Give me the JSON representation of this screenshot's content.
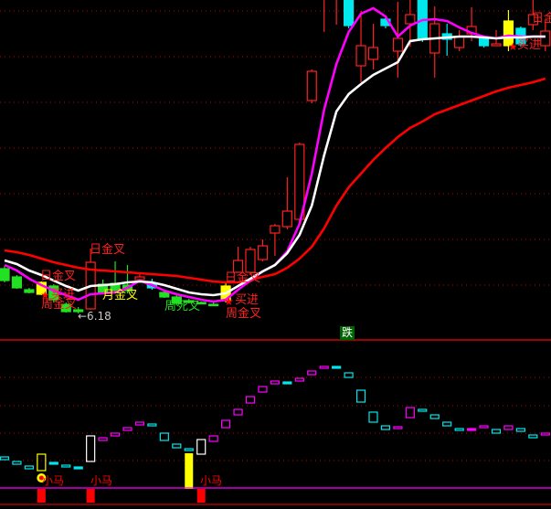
{
  "chart_data": [
    {
      "type": "candlestick",
      "ylim": [
        6.0,
        9.61
      ],
      "grid": true,
      "candles": [
        {
          "o": 6.67,
          "c": 6.54,
          "h": 6.7,
          "l": 6.52,
          "k": "down"
        },
        {
          "o": 6.58,
          "c": 6.46,
          "h": 6.6,
          "l": 6.45,
          "k": "down"
        },
        {
          "o": 6.44,
          "c": 6.41,
          "h": 6.46,
          "l": 6.4,
          "k": "down"
        },
        {
          "o": 6.39,
          "c": 6.52,
          "h": 6.53,
          "l": 6.38,
          "k": "yellow"
        },
        {
          "o": 6.48,
          "c": 6.33,
          "h": 6.5,
          "l": 6.3,
          "k": "down"
        },
        {
          "o": 6.28,
          "c": 6.2,
          "h": 6.3,
          "l": 6.19,
          "k": "down"
        },
        {
          "o": 6.22,
          "c": 6.2,
          "h": 6.25,
          "l": 6.18,
          "k": "down"
        },
        {
          "o": 6.23,
          "c": 6.74,
          "h": 6.89,
          "l": 6.22,
          "k": "up"
        },
        {
          "o": 6.5,
          "c": 6.41,
          "h": 6.55,
          "l": 6.4,
          "k": "down"
        },
        {
          "o": 6.51,
          "c": 6.43,
          "h": 6.75,
          "l": 6.4,
          "k": "down"
        },
        {
          "o": 6.49,
          "c": 6.43,
          "h": 6.71,
          "l": 6.4,
          "k": "down"
        },
        {
          "o": 6.55,
          "c": 6.58,
          "h": 6.63,
          "l": 6.52,
          "k": "up"
        },
        {
          "o": 6.51,
          "c": 6.46,
          "h": 6.56,
          "l": 6.44,
          "k": "cyan"
        },
        {
          "o": 6.41,
          "c": 6.36,
          "h": 6.43,
          "l": 6.35,
          "k": "down"
        },
        {
          "o": 6.36,
          "c": 6.29,
          "h": 6.38,
          "l": 6.27,
          "k": "down"
        },
        {
          "o": 6.32,
          "c": 6.3,
          "h": 6.34,
          "l": 6.29,
          "k": "down"
        },
        {
          "o": 6.3,
          "c": 6.29,
          "h": 6.31,
          "l": 6.28,
          "k": "down"
        },
        {
          "o": 6.28,
          "c": 6.28,
          "h": 6.3,
          "l": 6.26,
          "k": "down"
        },
        {
          "o": 6.32,
          "c": 6.48,
          "h": 6.52,
          "l": 6.3,
          "k": "yellow"
        },
        {
          "o": 6.63,
          "c": 6.76,
          "h": 6.91,
          "l": 6.63,
          "k": "up"
        },
        {
          "o": 6.63,
          "c": 6.88,
          "h": 6.91,
          "l": 6.6,
          "k": "up"
        },
        {
          "o": 6.77,
          "c": 6.92,
          "h": 6.99,
          "l": 6.75,
          "k": "up"
        },
        {
          "o": 7.06,
          "c": 7.14,
          "h": 7.16,
          "l": 6.81,
          "k": "up"
        },
        {
          "o": 7.13,
          "c": 7.3,
          "h": 7.67,
          "l": 7.1,
          "k": "up"
        },
        {
          "o": 7.21,
          "c": 8.03,
          "h": 8.05,
          "l": 7.18,
          "k": "up"
        },
        {
          "o": 8.51,
          "c": 8.83,
          "h": 8.85,
          "l": 8.48,
          "k": "up"
        },
        {
          "o": 9.7,
          "c": 10.0,
          "h": 10.2,
          "l": 9.26,
          "k": "up"
        },
        {
          "o": 9.75,
          "c": 9.95,
          "h": 10.1,
          "l": 9.34,
          "k": "up"
        },
        {
          "o": 9.9,
          "c": 9.33,
          "h": 9.95,
          "l": 9.3,
          "k": "cyan"
        },
        {
          "o": 8.89,
          "c": 9.11,
          "h": 9.49,
          "l": 8.71,
          "k": "up"
        },
        {
          "o": 8.96,
          "c": 9.09,
          "h": 9.35,
          "l": 8.85,
          "k": "up"
        },
        {
          "o": 9.4,
          "c": 9.33,
          "h": 9.42,
          "l": 9.3,
          "k": "cyan"
        },
        {
          "o": 9.05,
          "c": 9.19,
          "h": 9.59,
          "l": 8.76,
          "k": "up"
        },
        {
          "o": 9.35,
          "c": 9.45,
          "h": 9.62,
          "l": 9.1,
          "k": "up"
        },
        {
          "o": 9.7,
          "c": 9.19,
          "h": 9.7,
          "l": 9.15,
          "k": "cyan"
        },
        {
          "o": 9.03,
          "c": 9.35,
          "h": 9.54,
          "l": 8.76,
          "k": "up"
        },
        {
          "o": 9.24,
          "c": 9.18,
          "h": 9.35,
          "l": 9.0,
          "k": "cyan"
        },
        {
          "o": 9.09,
          "c": 9.21,
          "h": 9.28,
          "l": 9.05,
          "k": "up"
        },
        {
          "o": 9.24,
          "c": 9.32,
          "h": 9.53,
          "l": 9.16,
          "k": "up"
        },
        {
          "o": 9.19,
          "c": 9.11,
          "h": 9.2,
          "l": 9.09,
          "k": "cyan"
        },
        {
          "o": 9.11,
          "c": 9.13,
          "h": 9.28,
          "l": 9.11,
          "k": "up"
        },
        {
          "o": 9.11,
          "c": 9.38,
          "h": 9.5,
          "l": 9.05,
          "k": "yellow"
        },
        {
          "o": 9.3,
          "c": 9.13,
          "h": 9.32,
          "l": 9.1,
          "k": "cyan"
        },
        {
          "o": 9.34,
          "c": 9.45,
          "h": 9.61,
          "l": 9.28,
          "k": "up"
        },
        {
          "o": 9.11,
          "c": 9.27,
          "h": 9.4,
          "l": 9.05,
          "k": "up"
        }
      ],
      "lines": [
        {
          "color": "#ffffff",
          "values": [
            6.76,
            6.72,
            6.65,
            6.6,
            6.54,
            6.48,
            6.43,
            6.48,
            6.49,
            6.5,
            6.52,
            6.53,
            6.52,
            6.49,
            6.45,
            6.41,
            6.39,
            6.38,
            6.4,
            6.48,
            6.56,
            6.64,
            6.71,
            6.84,
            7.04,
            7.36,
            7.91,
            8.39,
            8.58,
            8.69,
            8.79,
            8.86,
            8.93,
            9.16,
            9.18,
            9.19,
            9.2,
            9.21,
            9.21,
            9.2,
            9.19,
            9.2,
            9.2,
            9.21,
            9.21
          ]
        },
        {
          "color": "#ff00ff",
          "values": [
            6.71,
            6.65,
            6.56,
            6.49,
            6.43,
            6.38,
            6.33,
            6.39,
            6.4,
            6.41,
            6.46,
            6.54,
            6.49,
            6.43,
            6.39,
            6.36,
            6.33,
            6.31,
            6.33,
            6.44,
            6.54,
            6.64,
            6.71,
            6.86,
            7.16,
            7.71,
            8.41,
            8.91,
            9.26,
            9.46,
            9.52,
            9.43,
            9.21,
            9.33,
            9.39,
            9.4,
            9.38,
            9.31,
            9.25,
            9.21,
            9.19,
            9.22,
            9.21,
            9.21,
            9.21
          ]
        },
        {
          "color": "#ff0000",
          "values": [
            6.87,
            6.85,
            6.82,
            6.78,
            6.74,
            6.71,
            6.68,
            6.66,
            6.65,
            6.64,
            6.63,
            6.62,
            6.61,
            6.6,
            6.59,
            6.57,
            6.55,
            6.53,
            6.52,
            6.52,
            6.55,
            6.58,
            6.61,
            6.68,
            6.78,
            6.91,
            7.11,
            7.36,
            7.56,
            7.71,
            7.86,
            7.99,
            8.11,
            8.21,
            8.28,
            8.36,
            8.41,
            8.46,
            8.51,
            8.56,
            8.61,
            8.65,
            8.68,
            8.71,
            8.75
          ]
        }
      ],
      "annotations": {
        "day_cross_1": "日金叉",
        "day_cross_2": "日金叉",
        "buy_1": "买进",
        "week_cross_1": "周金叉",
        "month_cross": "月金叉",
        "low_marker": "←6.18",
        "week_dead_cross": "周死叉",
        "day_cross_3": "日金叉",
        "buy_2": "买进",
        "week_cross_2": "周金叉",
        "day_cross_4": "日金",
        "buy_3": "买进",
        "fall_badge": "跌"
      }
    },
    {
      "type": "indicator-boxes",
      "boxes": [
        {
          "t": 3.4,
          "b": 3.1,
          "c": "cyan",
          "f": false
        },
        {
          "t": 2.9,
          "b": 2.6,
          "c": "cyan",
          "f": false
        },
        {
          "t": 2.4,
          "b": 2.1,
          "c": "cyan",
          "f": false
        },
        {
          "t": 3.7,
          "b": 1.9,
          "c": "yellow",
          "f": false
        },
        {
          "t": 2.8,
          "b": 2.6,
          "c": "cyan",
          "f": true
        },
        {
          "t": 2.5,
          "b": 2.3,
          "c": "cyan",
          "f": false
        },
        {
          "t": 2.3,
          "b": 2.1,
          "c": "cyan",
          "f": true
        },
        {
          "t": 5.7,
          "b": 2.9,
          "c": "white",
          "f": false
        },
        {
          "t": 5.5,
          "b": 5.2,
          "c": "magenta",
          "f": false
        },
        {
          "t": 6.0,
          "b": 5.7,
          "c": "magenta",
          "f": false
        },
        {
          "t": 6.6,
          "b": 6.3,
          "c": "magenta",
          "f": false
        },
        {
          "t": 7.2,
          "b": 6.9,
          "c": "magenta",
          "f": false
        },
        {
          "t": 7.0,
          "b": 6.8,
          "c": "cyan",
          "f": false
        },
        {
          "t": 6.0,
          "b": 5.2,
          "c": "cyan",
          "f": false
        },
        {
          "t": 4.8,
          "b": 4.4,
          "c": "cyan",
          "f": false
        },
        {
          "t": 4.3,
          "b": 4.1,
          "c": "cyan",
          "f": false
        },
        {
          "t": 5.3,
          "b": 3.7,
          "c": "white",
          "f": false
        },
        {
          "t": 5.7,
          "b": 5.1,
          "c": "magenta",
          "f": false
        },
        {
          "t": 7.4,
          "b": 6.6,
          "c": "magenta",
          "f": false
        },
        {
          "t": 8.6,
          "b": 8.0,
          "c": "magenta",
          "f": false
        },
        {
          "t": 10.0,
          "b": 9.3,
          "c": "magenta",
          "f": false
        },
        {
          "t": 11.1,
          "b": 10.5,
          "c": "magenta",
          "f": false
        },
        {
          "t": 11.7,
          "b": 11.4,
          "c": "magenta",
          "f": false
        },
        {
          "t": 11.6,
          "b": 11.4,
          "c": "cyan",
          "f": true
        },
        {
          "t": 12.0,
          "b": 11.7,
          "c": "magenta",
          "f": false
        },
        {
          "t": 12.8,
          "b": 12.4,
          "c": "magenta",
          "f": false
        },
        {
          "t": 13.3,
          "b": 13.1,
          "c": "magenta",
          "f": false
        },
        {
          "t": 13.3,
          "b": 13.1,
          "c": "cyan",
          "f": true
        },
        {
          "t": 12.6,
          "b": 12.1,
          "c": "cyan",
          "f": false
        },
        {
          "t": 10.7,
          "b": 9.4,
          "c": "cyan",
          "f": false
        },
        {
          "t": 8.3,
          "b": 7.2,
          "c": "cyan",
          "f": false
        },
        {
          "t": 6.8,
          "b": 6.4,
          "c": "cyan",
          "f": false
        },
        {
          "t": 6.7,
          "b": 6.5,
          "c": "magenta",
          "f": false
        },
        {
          "t": 8.8,
          "b": 7.7,
          "c": "magenta",
          "f": false
        },
        {
          "t": 8.6,
          "b": 8.4,
          "c": "cyan",
          "f": false
        },
        {
          "t": 8.0,
          "b": 7.6,
          "c": "cyan",
          "f": false
        },
        {
          "t": 7.2,
          "b": 6.8,
          "c": "cyan",
          "f": false
        },
        {
          "t": 6.5,
          "b": 6.3,
          "c": "cyan",
          "f": false
        },
        {
          "t": 6.5,
          "b": 6.3,
          "c": "magenta",
          "f": true
        },
        {
          "t": 6.8,
          "b": 6.6,
          "c": "magenta",
          "f": false
        },
        {
          "t": 6.4,
          "b": 6.0,
          "c": "cyan",
          "f": false
        },
        {
          "t": 6.8,
          "b": 6.4,
          "c": "magenta",
          "f": false
        },
        {
          "t": 6.5,
          "b": 6.2,
          "c": "cyan",
          "f": false
        },
        {
          "t": 5.8,
          "b": 5.5,
          "c": "cyan",
          "f": false
        },
        {
          "t": 6.0,
          "b": 5.8,
          "c": "magenta",
          "f": false
        }
      ],
      "yellow_bar": {
        "index": 15,
        "top": 3.8,
        "bottom": -0.1
      },
      "signal_bars": [
        3,
        7,
        16
      ],
      "signal_label": "小马"
    }
  ],
  "colors": {
    "up": "#ff2020",
    "down": "#22e022",
    "cyan": "#00e8ee",
    "yellow": "#ffff00",
    "magenta": "#ff00ff",
    "white": "#ffffff",
    "grid": "#c00000"
  }
}
